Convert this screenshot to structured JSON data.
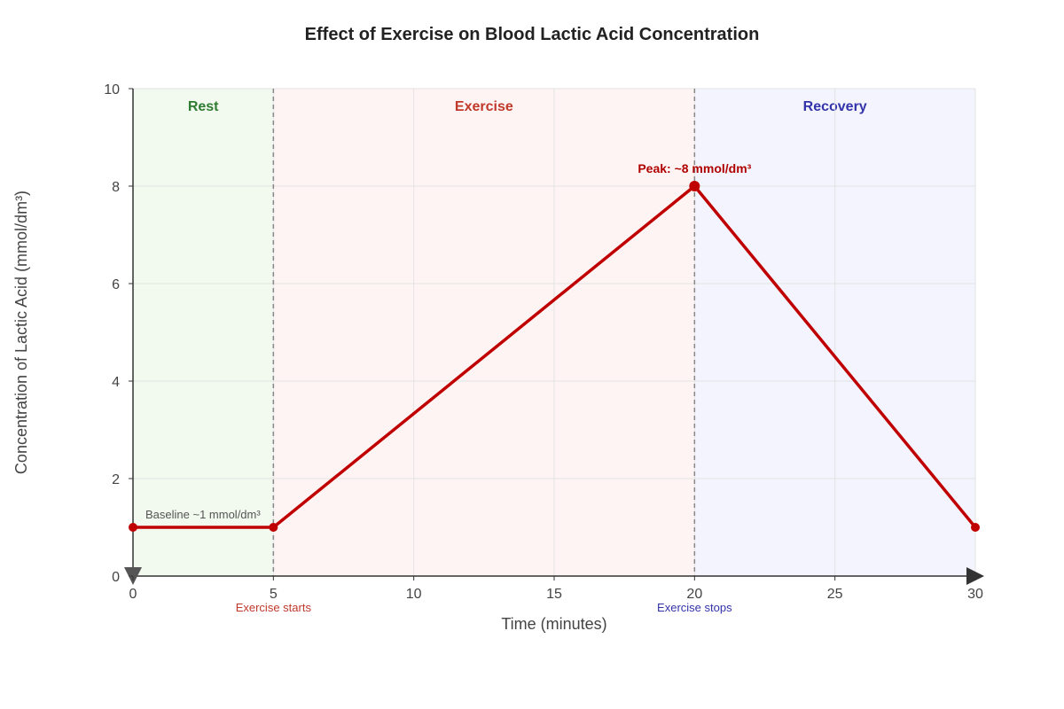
{
  "chart_data": {
    "type": "line",
    "title": "Effect of Exercise on Blood Lactic Acid Concentration",
    "xlabel": "Time (minutes)",
    "ylabel": "Concentration of Lactic Acid (mmol/dm³)",
    "xlim": [
      0,
      30
    ],
    "ylim": [
      0,
      10
    ],
    "x_ticks": [
      0,
      5,
      10,
      15,
      20,
      25,
      30
    ],
    "y_ticks": [
      0,
      2,
      4,
      6,
      8,
      10
    ],
    "grid": true,
    "series": [
      {
        "x": [
          0,
          5,
          20,
          30
        ],
        "y": [
          1,
          1,
          8,
          1
        ],
        "color": "#c00000"
      }
    ],
    "phases": [
      {
        "label": "Rest",
        "x_start": 0,
        "x_end": 5,
        "fill": "#eef7ea",
        "label_color": "#2e7d32"
      },
      {
        "label": "Exercise",
        "x_start": 5,
        "x_end": 20,
        "fill": "#fdf0ef",
        "label_color": "#c0392b"
      },
      {
        "label": "Recovery",
        "x_start": 20,
        "x_end": 30,
        "fill": "#eff0fc",
        "label_color": "#3333aa"
      }
    ],
    "markers": [
      {
        "x": 5,
        "label": "Exercise starts",
        "color": "#c0392b"
      },
      {
        "x": 20,
        "label": "Exercise stops",
        "color": "#3333aa"
      }
    ],
    "annotations": [
      {
        "x": 0,
        "y": 1,
        "text": "Baseline ~1 mmol/dm³",
        "color": "#555555",
        "kind": "baseline"
      },
      {
        "x": 20,
        "y": 8,
        "text": "Peak: ~8 mmol/dm³",
        "color": "#b00000",
        "kind": "peak"
      }
    ]
  }
}
